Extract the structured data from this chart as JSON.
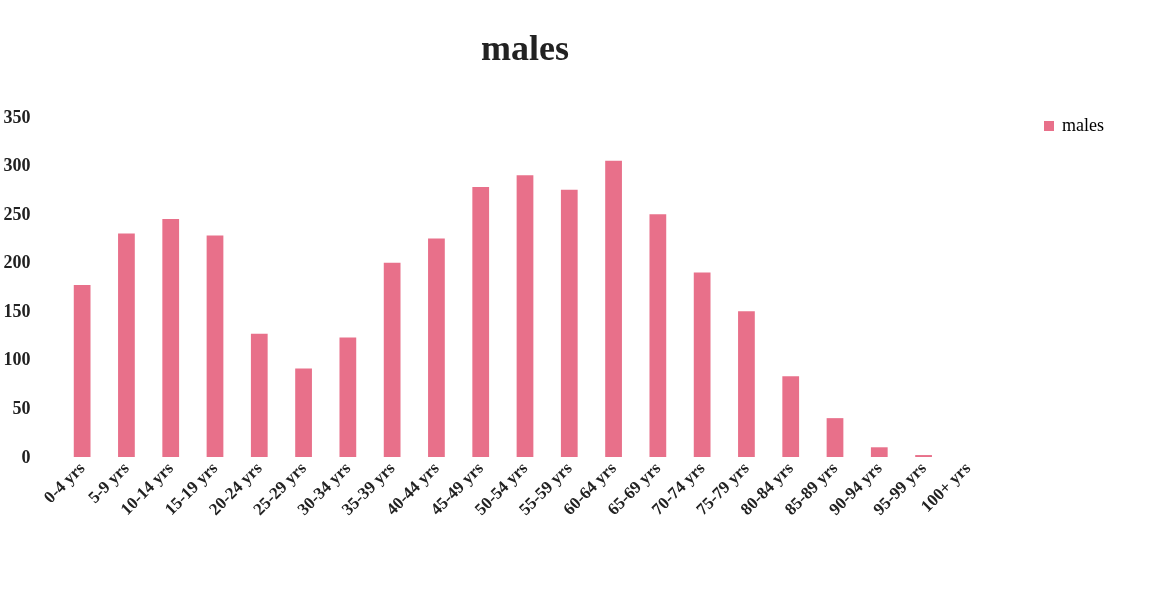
{
  "chart_data": {
    "type": "bar",
    "title": "males",
    "categories": [
      "0-4 yrs",
      "5-9 yrs",
      "10-14 yrs",
      "15-19 yrs",
      "20-24 yrs",
      "25-29 yrs",
      "30-34 yrs",
      "35-39 yrs",
      "40-44 yrs",
      "45-49 yrs",
      "50-54 yrs",
      "55-59 yrs",
      "60-64 yrs",
      "65-69 yrs",
      "70-74 yrs",
      "75-79 yrs",
      "80-84 yrs",
      "85-89 yrs",
      "90-94 yrs",
      "95-99 yrs",
      "100+ yrs"
    ],
    "series": [
      {
        "name": "males",
        "color": "#e8708a",
        "values": [
          177,
          230,
          245,
          228,
          127,
          91,
          123,
          200,
          225,
          278,
          290,
          275,
          305,
          250,
          190,
          150,
          83,
          40,
          10,
          2,
          0
        ]
      }
    ],
    "ylim": [
      0,
      350
    ],
    "yticks": [
      0,
      50,
      100,
      150,
      200,
      250,
      300,
      350
    ],
    "grid": false,
    "legend": "right"
  }
}
